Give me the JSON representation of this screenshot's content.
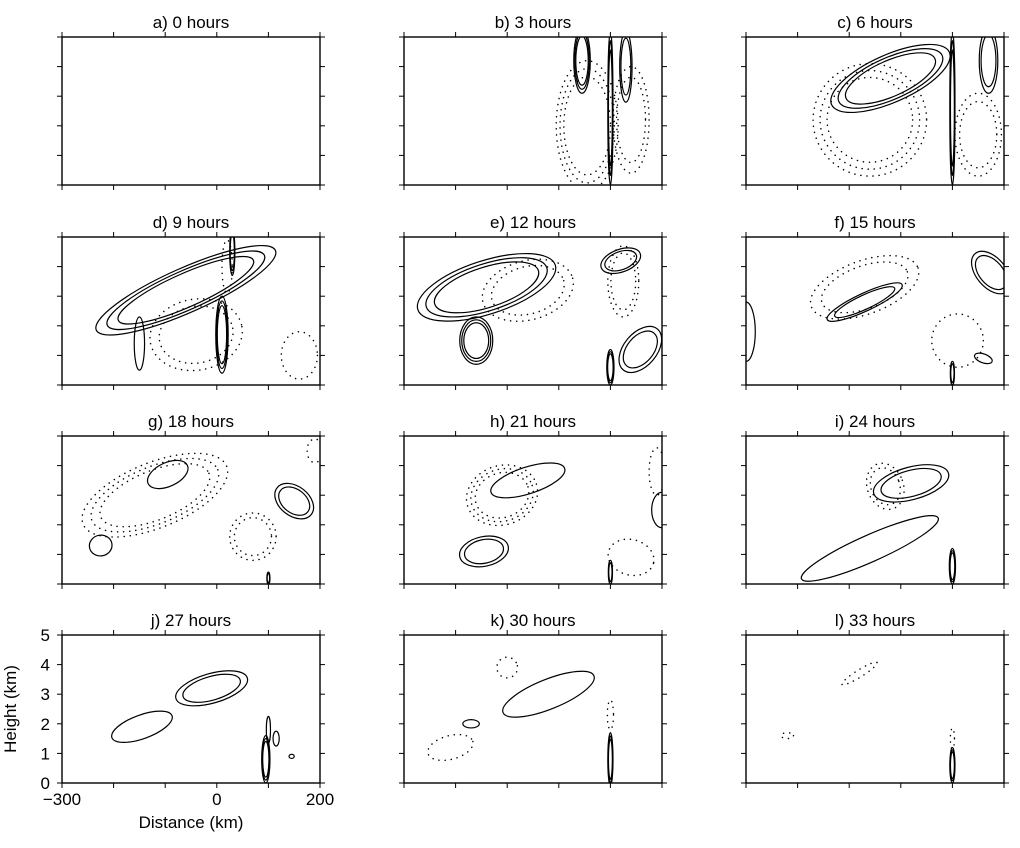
{
  "chart_data": {
    "type": "contour",
    "layout": "4x3 grid",
    "xlim": [
      -300,
      200
    ],
    "ylim": [
      0,
      5
    ],
    "xlabel": "Distance (km)",
    "ylabel": "Height (km)",
    "x_ticks": [
      -300,
      -200,
      -100,
      0,
      100,
      200
    ],
    "x_tick_labels": [
      "−300",
      "",
      "",
      "0",
      "",
      "200"
    ],
    "y_ticks": [
      0,
      1,
      2,
      3,
      4,
      5
    ],
    "y_tick_labels": [
      "0",
      "1",
      "2",
      "3",
      "4",
      "5"
    ],
    "labeled_panel_index": 9,
    "panels": [
      {
        "title": "a) 0 hours",
        "features": []
      },
      {
        "title": "b) 3 hours",
        "features": [
          {
            "sign": "pos",
            "levels": 3,
            "cx": 45,
            "cy": 4.2,
            "rx": 16,
            "ry": 1.1,
            "angle": 0
          },
          {
            "sign": "pos",
            "levels": 2,
            "cx": 130,
            "cy": 4.0,
            "rx": 12,
            "ry": 1.2,
            "angle": 0
          },
          {
            "sign": "pos",
            "levels": 3,
            "cx": 100,
            "cy": 2.6,
            "rx": 5,
            "ry": 2.6,
            "angle": 0
          },
          {
            "sign": "neg",
            "levels": 3,
            "cx": 55,
            "cy": 2.0,
            "rx": 60,
            "ry": 2.2,
            "angle": 0
          },
          {
            "sign": "neg",
            "levels": 2,
            "cx": 140,
            "cy": 2.2,
            "rx": 35,
            "ry": 1.8,
            "angle": 0
          }
        ]
      },
      {
        "title": "c) 6 hours",
        "features": [
          {
            "sign": "pos",
            "levels": 3,
            "cx": -20,
            "cy": 3.6,
            "rx": 125,
            "ry": 0.8,
            "angle": -24
          },
          {
            "sign": "pos",
            "levels": 2,
            "cx": 170,
            "cy": 4.2,
            "rx": 18,
            "ry": 1.1,
            "angle": 0
          },
          {
            "sign": "pos",
            "levels": 3,
            "cx": 100,
            "cy": 2.6,
            "rx": 5,
            "ry": 2.6,
            "angle": 0
          },
          {
            "sign": "neg",
            "levels": 3,
            "cx": -60,
            "cy": 2.2,
            "rx": 110,
            "ry": 1.9,
            "angle": 0
          },
          {
            "sign": "neg",
            "levels": 2,
            "cx": 150,
            "cy": 1.7,
            "rx": 45,
            "ry": 1.4,
            "angle": 0
          }
        ]
      },
      {
        "title": "d) 9 hours",
        "features": [
          {
            "sign": "pos",
            "levels": 3,
            "cx": -60,
            "cy": 3.2,
            "rx": 190,
            "ry": 0.75,
            "angle": -24
          },
          {
            "sign": "pos",
            "levels": 3,
            "cx": 10,
            "cy": 1.7,
            "rx": 12,
            "ry": 1.3,
            "angle": 0
          },
          {
            "sign": "pos",
            "levels": 2,
            "cx": 30,
            "cy": 4.5,
            "rx": 5,
            "ry": 0.8,
            "angle": 0
          },
          {
            "sign": "pos",
            "levels": 1,
            "cx": -150,
            "cy": 1.4,
            "rx": 10,
            "ry": 0.9,
            "angle": 0
          },
          {
            "sign": "neg",
            "levels": 2,
            "cx": -40,
            "cy": 1.7,
            "rx": 90,
            "ry": 1.2,
            "angle": -10
          },
          {
            "sign": "neg",
            "levels": 1,
            "cx": 160,
            "cy": 1.0,
            "rx": 35,
            "ry": 0.8,
            "angle": 0
          },
          {
            "sign": "neg",
            "levels": 1,
            "cx": 20,
            "cy": 4.0,
            "rx": 10,
            "ry": 0.9,
            "angle": 0
          }
        ]
      },
      {
        "title": "e) 12 hours",
        "features": [
          {
            "sign": "pos",
            "levels": 3,
            "cx": -140,
            "cy": 3.3,
            "rx": 140,
            "ry": 0.9,
            "angle": -18
          },
          {
            "sign": "pos",
            "levels": 3,
            "cx": -160,
            "cy": 1.5,
            "rx": 32,
            "ry": 0.8,
            "angle": 0
          },
          {
            "sign": "pos",
            "levels": 2,
            "cx": 158,
            "cy": 1.2,
            "rx": 32,
            "ry": 0.9,
            "angle": 40
          },
          {
            "sign": "pos",
            "levels": 3,
            "cx": 100,
            "cy": 0.6,
            "rx": 7,
            "ry": 0.6,
            "angle": 0
          },
          {
            "sign": "pos",
            "levels": 2,
            "cx": 120,
            "cy": 4.2,
            "rx": 22,
            "ry": 0.7,
            "angle": 70
          },
          {
            "sign": "neg",
            "levels": 2,
            "cx": -60,
            "cy": 3.2,
            "rx": 90,
            "ry": 1.0,
            "angle": -15
          },
          {
            "sign": "neg",
            "levels": 2,
            "cx": 125,
            "cy": 3.5,
            "rx": 30,
            "ry": 1.2,
            "angle": 0
          }
        ]
      },
      {
        "title": "f) 15 hours",
        "features": [
          {
            "sign": "pos",
            "levels": 2,
            "cx": -70,
            "cy": 2.8,
            "rx": 80,
            "ry": 0.3,
            "angle": -25
          },
          {
            "sign": "pos",
            "levels": 2,
            "cx": 175,
            "cy": 3.8,
            "rx": 48,
            "ry": 0.5,
            "angle": 50
          },
          {
            "sign": "pos",
            "levels": 1,
            "cx": -300,
            "cy": 1.8,
            "rx": 18,
            "ry": 1.0,
            "angle": 0
          },
          {
            "sign": "pos",
            "levels": 1,
            "cx": 160,
            "cy": 0.9,
            "rx": 18,
            "ry": 0.15,
            "angle": 20
          },
          {
            "sign": "pos",
            "levels": 2,
            "cx": 100,
            "cy": 0.4,
            "rx": 4,
            "ry": 0.4,
            "angle": 0
          },
          {
            "sign": "neg",
            "levels": 2,
            "cx": -70,
            "cy": 3.3,
            "rx": 110,
            "ry": 0.9,
            "angle": -20
          },
          {
            "sign": "neg",
            "levels": 1,
            "cx": 110,
            "cy": 1.5,
            "rx": 50,
            "ry": 0.9,
            "angle": 0
          }
        ]
      },
      {
        "title": "g) 18 hours",
        "features": [
          {
            "sign": "pos",
            "levels": 1,
            "cx": -95,
            "cy": 3.7,
            "rx": 42,
            "ry": 0.4,
            "angle": -25
          },
          {
            "sign": "pos",
            "levels": 2,
            "cx": 150,
            "cy": 2.8,
            "rx": 42,
            "ry": 0.5,
            "angle": 38
          },
          {
            "sign": "pos",
            "levels": 1,
            "cx": -225,
            "cy": 1.3,
            "rx": 22,
            "ry": 0.35,
            "angle": -10
          },
          {
            "sign": "pos",
            "levels": 2,
            "cx": 100,
            "cy": 0.2,
            "rx": 3,
            "ry": 0.2,
            "angle": 0
          },
          {
            "sign": "neg",
            "levels": 3,
            "cx": -120,
            "cy": 3.0,
            "rx": 150,
            "ry": 1.1,
            "angle": -22
          },
          {
            "sign": "neg",
            "levels": 2,
            "cx": 70,
            "cy": 1.6,
            "rx": 45,
            "ry": 0.8,
            "angle": 0
          },
          {
            "sign": "neg",
            "levels": 1,
            "cx": 190,
            "cy": 4.5,
            "rx": 15,
            "ry": 0.4,
            "angle": 0
          }
        ]
      },
      {
        "title": "h) 21 hours",
        "features": [
          {
            "sign": "pos",
            "levels": 1,
            "cx": -60,
            "cy": 3.5,
            "rx": 75,
            "ry": 0.45,
            "angle": -18
          },
          {
            "sign": "pos",
            "levels": 2,
            "cx": -145,
            "cy": 1.1,
            "rx": 48,
            "ry": 0.5,
            "angle": -12
          },
          {
            "sign": "pos",
            "levels": 1,
            "cx": 200,
            "cy": 2.5,
            "rx": 20,
            "ry": 0.6,
            "angle": 0
          },
          {
            "sign": "pos",
            "levels": 2,
            "cx": 100,
            "cy": 0.4,
            "rx": 4,
            "ry": 0.4,
            "angle": 0
          },
          {
            "sign": "neg",
            "levels": 3,
            "cx": -110,
            "cy": 3.0,
            "rx": 70,
            "ry": 1.0,
            "angle": -18
          },
          {
            "sign": "neg",
            "levels": 1,
            "cx": 140,
            "cy": 0.9,
            "rx": 45,
            "ry": 0.6,
            "angle": 15
          },
          {
            "sign": "neg",
            "levels": 1,
            "cx": 190,
            "cy": 3.8,
            "rx": 15,
            "ry": 0.8,
            "angle": 0
          }
        ]
      },
      {
        "title": "i) 24 hours",
        "features": [
          {
            "sign": "pos",
            "levels": 2,
            "cx": 20,
            "cy": 3.4,
            "rx": 75,
            "ry": 0.55,
            "angle": -15
          },
          {
            "sign": "pos",
            "levels": 1,
            "cx": -60,
            "cy": 1.2,
            "rx": 145,
            "ry": 0.45,
            "angle": -24
          },
          {
            "sign": "pos",
            "levels": 3,
            "cx": 100,
            "cy": 0.6,
            "rx": 6,
            "ry": 0.6,
            "angle": 0
          },
          {
            "sign": "neg",
            "levels": 2,
            "cx": -30,
            "cy": 3.3,
            "rx": 35,
            "ry": 0.8,
            "angle": -20
          }
        ]
      },
      {
        "title": "j) 27 hours",
        "features": [
          {
            "sign": "pos",
            "levels": 2,
            "cx": -10,
            "cy": 3.2,
            "rx": 72,
            "ry": 0.5,
            "angle": -16
          },
          {
            "sign": "pos",
            "levels": 1,
            "cx": -145,
            "cy": 1.9,
            "rx": 62,
            "ry": 0.4,
            "angle": -20
          },
          {
            "sign": "pos",
            "levels": 3,
            "cx": 95,
            "cy": 0.8,
            "rx": 8,
            "ry": 0.8,
            "angle": 0
          },
          {
            "sign": "pos",
            "levels": 1,
            "cx": 100,
            "cy": 1.8,
            "rx": 4,
            "ry": 0.45,
            "angle": 0
          },
          {
            "sign": "pos",
            "levels": 1,
            "cx": 115,
            "cy": 1.5,
            "rx": 6,
            "ry": 0.25,
            "angle": 0
          },
          {
            "sign": "pos",
            "levels": 1,
            "cx": 145,
            "cy": 0.9,
            "rx": 5,
            "ry": 0.07,
            "angle": 0
          }
        ]
      },
      {
        "title": "k) 30 hours",
        "features": [
          {
            "sign": "pos",
            "levels": 1,
            "cx": -20,
            "cy": 3.0,
            "rx": 95,
            "ry": 0.5,
            "angle": -22
          },
          {
            "sign": "pos",
            "levels": 1,
            "cx": -170,
            "cy": 2.0,
            "rx": 16,
            "ry": 0.14,
            "angle": 0
          },
          {
            "sign": "pos",
            "levels": 3,
            "cx": 100,
            "cy": 0.8,
            "rx": 5,
            "ry": 0.9,
            "angle": 0
          },
          {
            "sign": "neg",
            "levels": 1,
            "cx": -100,
            "cy": 3.9,
            "rx": 20,
            "ry": 0.35,
            "angle": -10
          },
          {
            "sign": "neg",
            "levels": 1,
            "cx": -210,
            "cy": 1.2,
            "rx": 45,
            "ry": 0.4,
            "angle": -15
          },
          {
            "sign": "neg",
            "levels": 1,
            "cx": 100,
            "cy": 2.3,
            "rx": 6,
            "ry": 0.5,
            "angle": 0
          }
        ]
      },
      {
        "title": "l) 33 hours",
        "features": [
          {
            "sign": "pos",
            "levels": 3,
            "cx": 100,
            "cy": 0.6,
            "rx": 5,
            "ry": 0.6,
            "angle": 0
          },
          {
            "sign": "neg",
            "levels": 1,
            "cx": -80,
            "cy": 3.7,
            "rx": 40,
            "ry": 0.12,
            "angle": -32
          },
          {
            "sign": "neg",
            "levels": 1,
            "cx": -220,
            "cy": 1.6,
            "rx": 12,
            "ry": 0.1,
            "angle": 0
          },
          {
            "sign": "neg",
            "levels": 1,
            "cx": 100,
            "cy": 1.5,
            "rx": 4,
            "ry": 0.35,
            "angle": 0
          }
        ]
      }
    ]
  }
}
